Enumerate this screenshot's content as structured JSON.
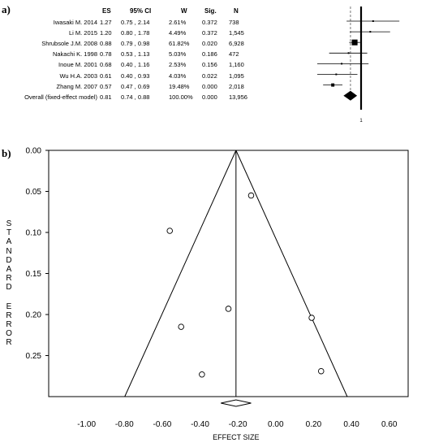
{
  "forest": {
    "panel_label": "a)",
    "headers": {
      "es": "ES",
      "ci": "95% CI",
      "w": "W",
      "sig": "Sig.",
      "n": "N"
    },
    "rows": [
      {
        "study": "Iwasaki M. 2014",
        "es": "1.27",
        "ci": "0.75 , 2.14",
        "w": "2.61%",
        "sig": "0.372",
        "n": "738"
      },
      {
        "study": "Li M. 2015",
        "es": "1.20",
        "ci": "0.80 , 1.78",
        "w": "4.49%",
        "sig": "0.372",
        "n": "1,545"
      },
      {
        "study": "Shrubsole J.M. 2008",
        "es": "0.88",
        "ci": "0.79 , 0.98",
        "w": "61.82%",
        "sig": "0.020",
        "n": "6,928"
      },
      {
        "study": "Nakachi K. 1998",
        "es": "0.78",
        "ci": "0.53 , 1.13",
        "w": "5.03%",
        "sig": "0.186",
        "n": "472"
      },
      {
        "study": "Inoue M. 2001",
        "es": "0.68",
        "ci": "0.40 , 1.16",
        "w": "2.53%",
        "sig": "0.156",
        "n": "1,160"
      },
      {
        "study": "Wu H.A. 2003",
        "es": "0.61",
        "ci": "0.40 , 0.93",
        "w": "4.03%",
        "sig": "0.022",
        "n": "1,095"
      },
      {
        "study": "Zhang M. 2007",
        "es": "0.57",
        "ci": "0.47 , 0.69",
        "w": "19.48%",
        "sig": "0.000",
        "n": "2,018"
      },
      {
        "study": "Overall (fixed-effect model)",
        "es": "0.81",
        "ci": "0.74 , 0.88",
        "w": "100.00%",
        "sig": "0.000",
        "n": "13,956"
      }
    ],
    "axis_tick": "1"
  },
  "chart_data": [
    {
      "type": "forest",
      "null_value": 1,
      "studies": [
        {
          "name": "Iwasaki M. 2014",
          "es": 1.27,
          "lo": 0.75,
          "hi": 2.14,
          "weight": 2.61
        },
        {
          "name": "Li M. 2015",
          "es": 1.2,
          "lo": 0.8,
          "hi": 1.78,
          "weight": 4.49
        },
        {
          "name": "Shrubsole J.M. 2008",
          "es": 0.88,
          "lo": 0.79,
          "hi": 0.98,
          "weight": 61.82
        },
        {
          "name": "Nakachi K. 1998",
          "es": 0.78,
          "lo": 0.53,
          "hi": 1.13,
          "weight": 5.03
        },
        {
          "name": "Inoue M. 2001",
          "es": 0.68,
          "lo": 0.4,
          "hi": 1.16,
          "weight": 2.53
        },
        {
          "name": "Wu H.A. 2003",
          "es": 0.61,
          "lo": 0.4,
          "hi": 0.93,
          "weight": 4.03
        },
        {
          "name": "Zhang M. 2007",
          "es": 0.57,
          "lo": 0.47,
          "hi": 0.69,
          "weight": 19.48
        }
      ],
      "overall": {
        "es": 0.81,
        "lo": 0.74,
        "hi": 0.88
      }
    },
    {
      "type": "scatter",
      "panel_label": "b)",
      "xlabel": "EFFECT SIZE",
      "ylabel": "STANDARD ERROR",
      "xlim": [
        -1.2,
        0.7
      ],
      "ylim": [
        0.0,
        0.3
      ],
      "y_inverted": true,
      "x_ticks": [
        "-1.00",
        "-0.80",
        "-0.60",
        "-0.40",
        "-0.20",
        "0.00",
        "0.20",
        "0.40",
        "0.60"
      ],
      "x_tick_values": [
        -1.0,
        -0.8,
        -0.6,
        -0.4,
        -0.2,
        0.0,
        0.2,
        0.4,
        0.6
      ],
      "y_ticks": [
        "0.00",
        "0.05",
        "0.10",
        "0.15",
        "0.20",
        "0.25"
      ],
      "y_tick_values": [
        0.0,
        0.05,
        0.1,
        0.15,
        0.2,
        0.25
      ],
      "pooled_effect": -0.21,
      "funnel_base_se": 0.3,
      "points": [
        {
          "x": -0.13,
          "y": 0.055
        },
        {
          "x": -0.56,
          "y": 0.098
        },
        {
          "x": -0.25,
          "y": 0.193
        },
        {
          "x": 0.19,
          "y": 0.204
        },
        {
          "x": -0.5,
          "y": 0.215
        },
        {
          "x": -0.39,
          "y": 0.273
        },
        {
          "x": 0.24,
          "y": 0.269
        }
      ],
      "pooled_diamond": {
        "es": -0.21,
        "lo": -0.29,
        "hi": -0.13
      }
    }
  ]
}
